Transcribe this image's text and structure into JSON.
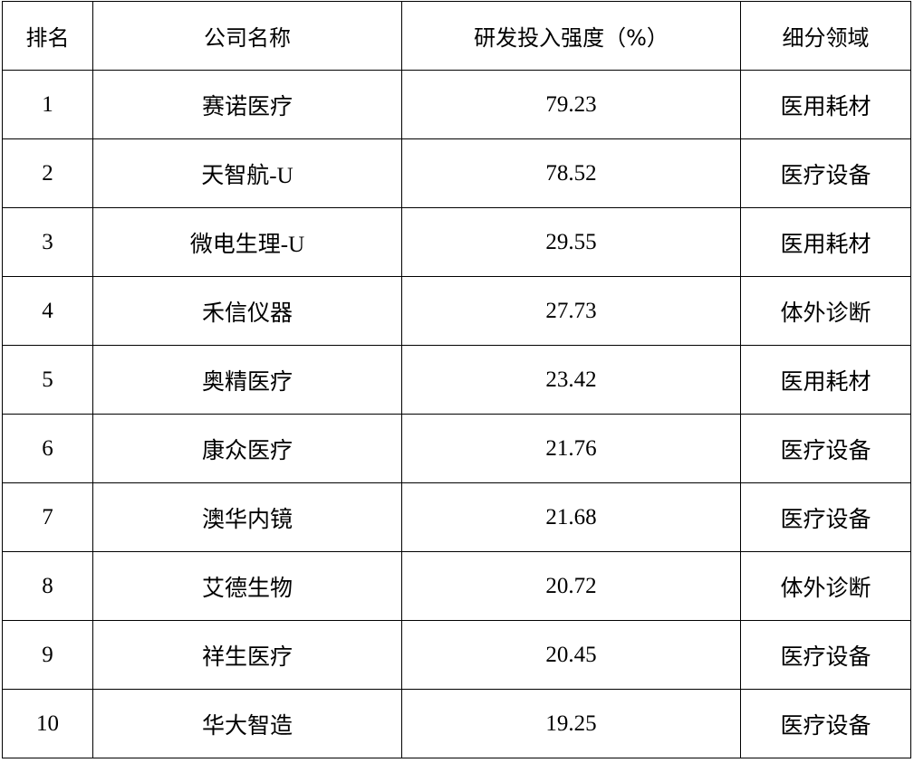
{
  "table": {
    "headers": [
      "排名",
      "公司名称",
      "研发投入强度（%）",
      "细分领域"
    ],
    "rows": [
      [
        "1",
        "赛诺医疗",
        "79.23",
        "医用耗材"
      ],
      [
        "2",
        "天智航-U",
        "78.52",
        "医疗设备"
      ],
      [
        "3",
        "微电生理-U",
        "29.55",
        "医用耗材"
      ],
      [
        "4",
        "禾信仪器",
        "27.73",
        "体外诊断"
      ],
      [
        "5",
        "奥精医疗",
        "23.42",
        "医用耗材"
      ],
      [
        "6",
        "康众医疗",
        "21.76",
        "医疗设备"
      ],
      [
        "7",
        "澳华内镜",
        "21.68",
        "医疗设备"
      ],
      [
        "8",
        "艾德生物",
        "20.72",
        "体外诊断"
      ],
      [
        "9",
        "祥生医疗",
        "20.45",
        "医疗设备"
      ],
      [
        "10",
        "华大智造",
        "19.25",
        "医疗设备"
      ]
    ]
  }
}
